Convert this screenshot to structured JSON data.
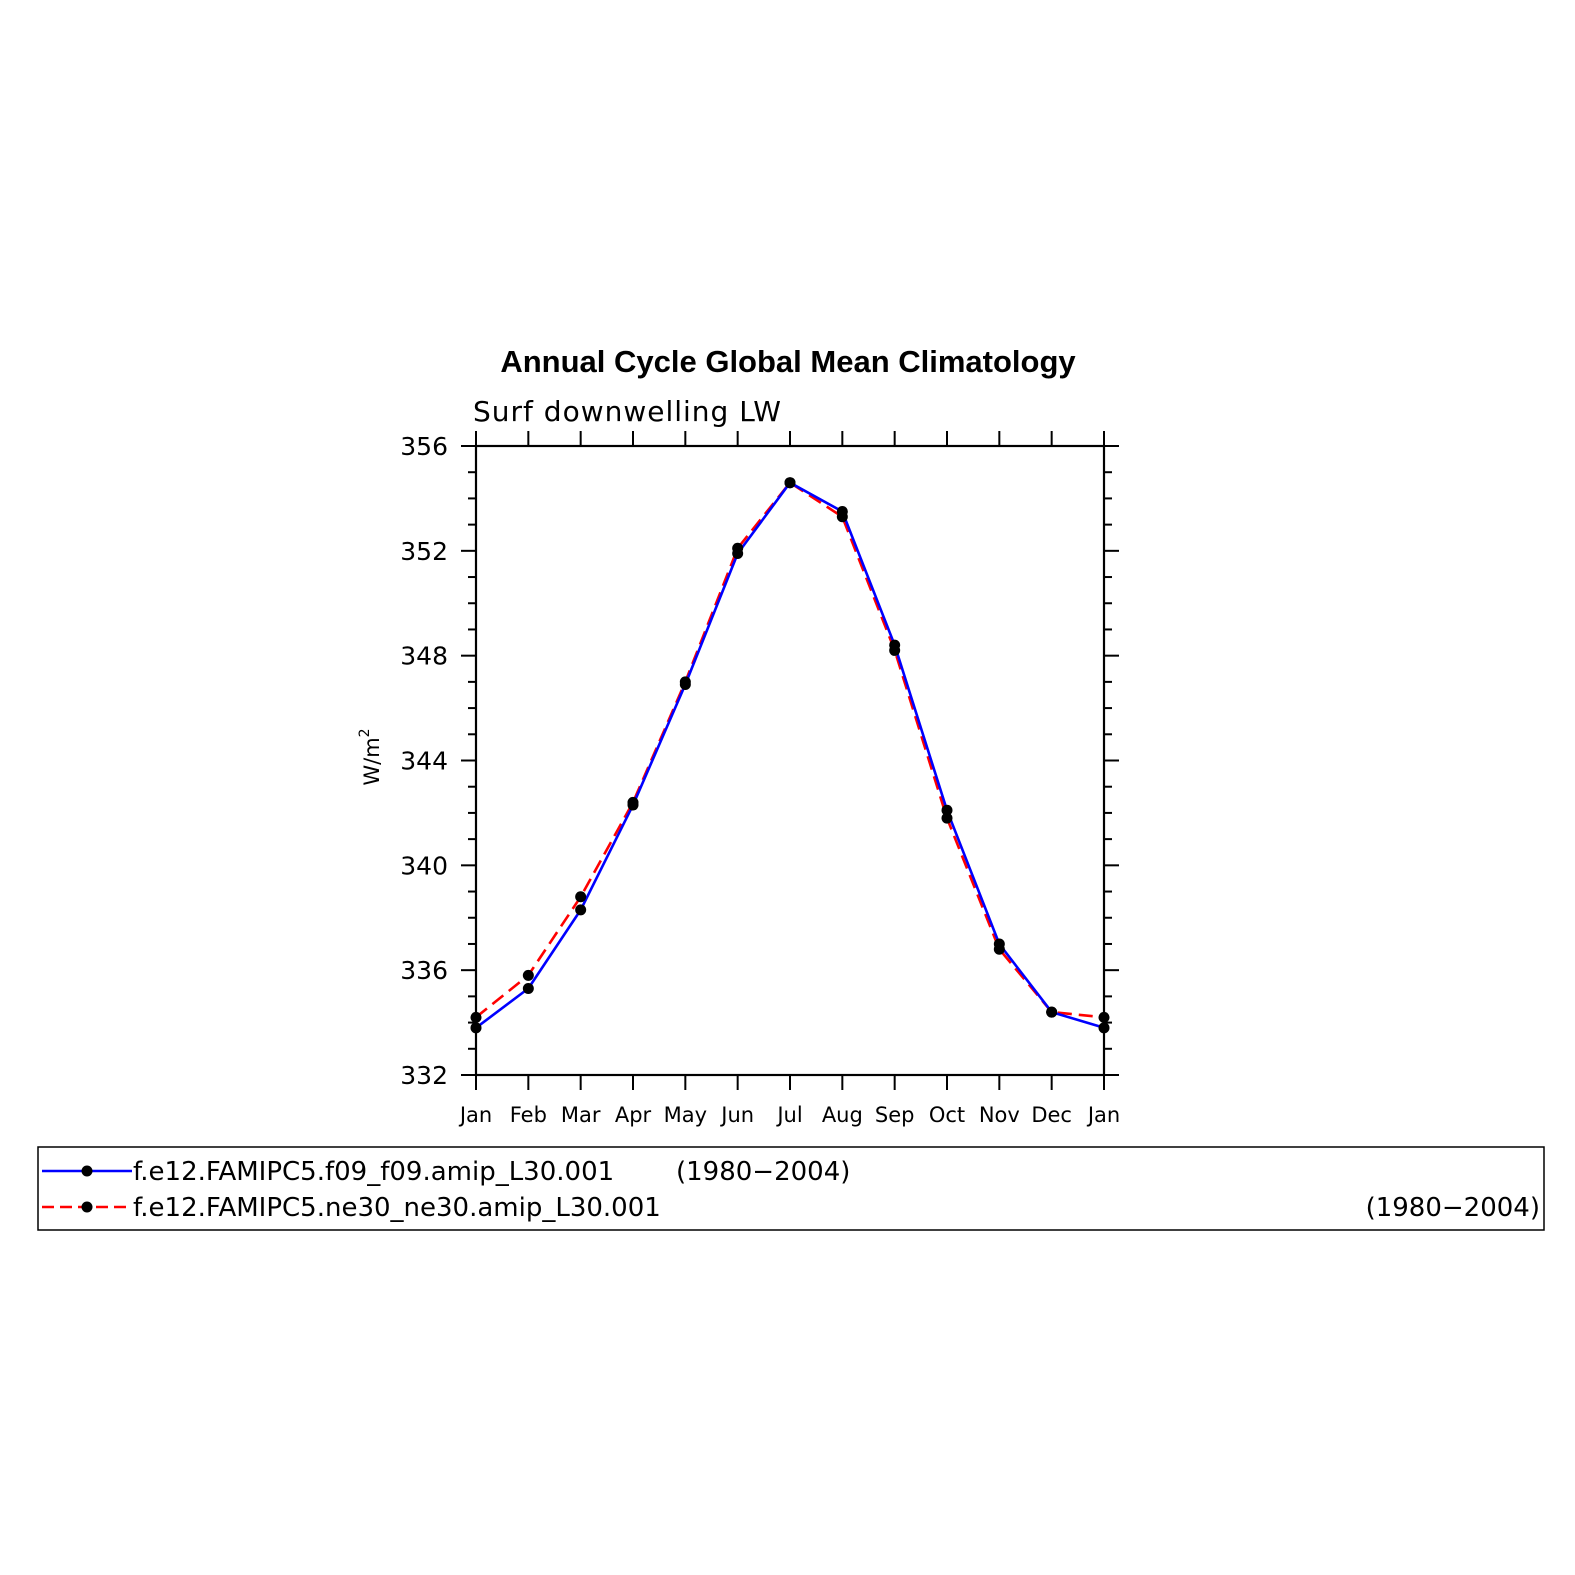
{
  "chart_data": {
    "type": "line",
    "title": "Annual Cycle Global Mean Climatology",
    "subtitle": "Surf downwelling LW",
    "ylabel": "W/m",
    "ylabel_sup": "2",
    "categories": [
      "Jan",
      "Feb",
      "Mar",
      "Apr",
      "May",
      "Jun",
      "Jul",
      "Aug",
      "Sep",
      "Oct",
      "Nov",
      "Dec",
      "Jan"
    ],
    "ylim": [
      332,
      356
    ],
    "yticks": [
      332,
      336,
      340,
      344,
      348,
      352,
      356
    ],
    "series": [
      {
        "name": "f.e12.FAMIPC5.f09_f09.amip_L30.001",
        "period": "(1980−2004)",
        "color": "#0000ff",
        "dash": "solid",
        "values": [
          333.8,
          335.3,
          338.3,
          342.3,
          346.9,
          351.9,
          354.6,
          353.5,
          348.4,
          342.1,
          337.0,
          334.4,
          333.8
        ]
      },
      {
        "name": "f.e12.FAMIPC5.ne30_ne30.amip_L30.001",
        "period": "(1980−2004)",
        "color": "#ff0000",
        "dash": "dashed",
        "values": [
          334.2,
          335.8,
          338.8,
          342.4,
          347.0,
          352.1,
          354.6,
          353.3,
          348.2,
          341.8,
          336.8,
          334.4,
          334.2
        ]
      }
    ]
  }
}
